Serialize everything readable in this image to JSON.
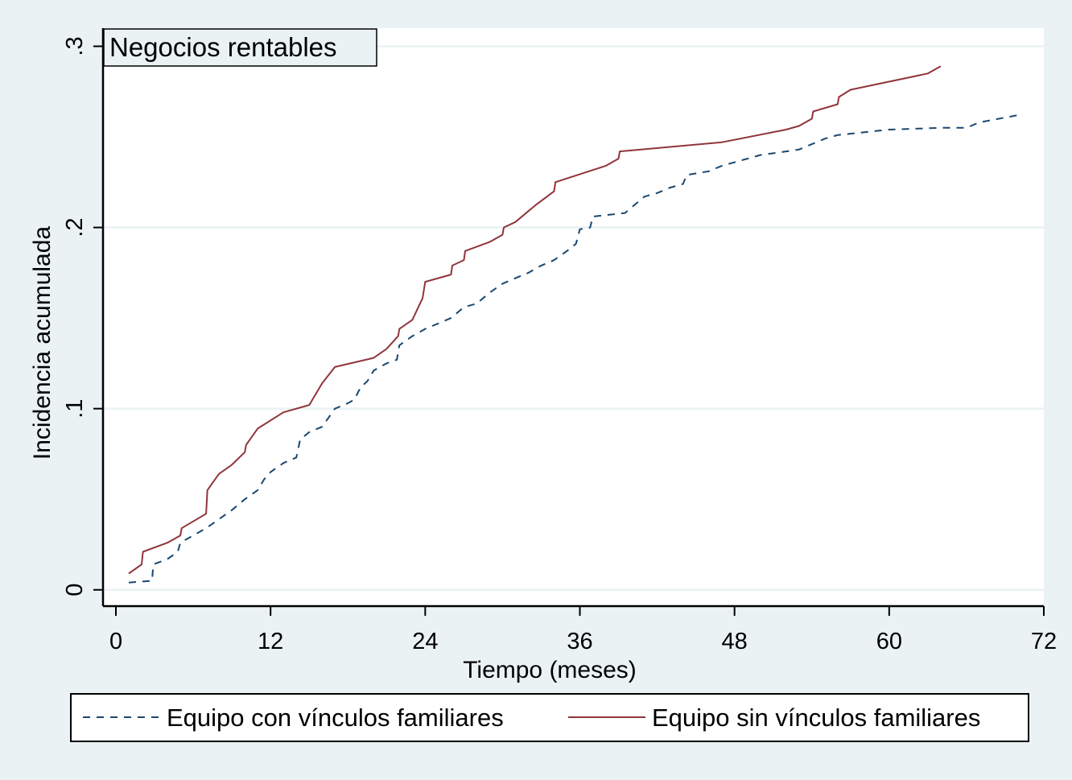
{
  "chart_data": {
    "type": "line",
    "title": "",
    "panel_label": "Negocios rentables",
    "xlabel": "Tiempo (meses)",
    "ylabel": "Incidencia acumulada",
    "xlim": [
      -1,
      72
    ],
    "ylim": [
      -0.009,
      0.31
    ],
    "x_ticks": [
      0,
      12,
      24,
      36,
      48,
      60,
      72
    ],
    "x_tick_labels": [
      "0",
      "12",
      "24",
      "36",
      "48",
      "60",
      "72"
    ],
    "y_ticks": [
      0,
      0.1,
      0.2,
      0.3
    ],
    "y_tick_labels": [
      "0",
      ".1",
      ".2",
      ".3"
    ],
    "grid": true,
    "legend_position": "bottom",
    "series": [
      {
        "name": "Equipo con vínculos familiares",
        "style": "dashed",
        "color": "#1a476f",
        "points": [
          [
            1.0,
            0.004
          ],
          [
            2.8,
            0.005
          ],
          [
            2.9,
            0.014
          ],
          [
            4.0,
            0.017
          ],
          [
            4.8,
            0.021
          ],
          [
            5.0,
            0.026
          ],
          [
            7.0,
            0.034
          ],
          [
            9.0,
            0.044
          ],
          [
            10.0,
            0.05
          ],
          [
            11.0,
            0.055
          ],
          [
            11.5,
            0.061
          ],
          [
            12.0,
            0.065
          ],
          [
            13.0,
            0.07
          ],
          [
            14.0,
            0.073
          ],
          [
            14.3,
            0.083
          ],
          [
            15.0,
            0.087
          ],
          [
            16.0,
            0.09
          ],
          [
            17.0,
            0.1
          ],
          [
            18.0,
            0.103
          ],
          [
            18.5,
            0.105
          ],
          [
            19.0,
            0.112
          ],
          [
            19.5,
            0.115
          ],
          [
            20.0,
            0.121
          ],
          [
            21.0,
            0.125
          ],
          [
            21.8,
            0.127
          ],
          [
            22.0,
            0.135
          ],
          [
            23.0,
            0.14
          ],
          [
            24.0,
            0.144
          ],
          [
            25.0,
            0.147
          ],
          [
            26.0,
            0.15
          ],
          [
            27.0,
            0.156
          ],
          [
            28.0,
            0.158
          ],
          [
            29.0,
            0.164
          ],
          [
            30.0,
            0.169
          ],
          [
            31.0,
            0.172
          ],
          [
            32.0,
            0.175
          ],
          [
            33.0,
            0.179
          ],
          [
            34.0,
            0.182
          ],
          [
            35.0,
            0.187
          ],
          [
            35.7,
            0.191
          ],
          [
            36.0,
            0.199
          ],
          [
            36.8,
            0.2
          ],
          [
            37.0,
            0.206
          ],
          [
            39.5,
            0.208
          ],
          [
            40.0,
            0.211
          ],
          [
            41.0,
            0.217
          ],
          [
            42.0,
            0.219
          ],
          [
            43.0,
            0.222
          ],
          [
            44.0,
            0.224
          ],
          [
            44.3,
            0.229
          ],
          [
            46.0,
            0.231
          ],
          [
            47.0,
            0.234
          ],
          [
            49.0,
            0.238
          ],
          [
            50.0,
            0.24
          ],
          [
            52.0,
            0.242
          ],
          [
            53.0,
            0.243
          ],
          [
            54.0,
            0.246
          ],
          [
            55.0,
            0.249
          ],
          [
            56.0,
            0.251
          ],
          [
            60.0,
            0.254
          ],
          [
            64.0,
            0.255
          ],
          [
            66.0,
            0.255
          ],
          [
            67.0,
            0.258
          ],
          [
            70.0,
            0.262
          ]
        ]
      },
      {
        "name": "Equipo sin vínculos familiares",
        "style": "solid",
        "color": "#90353b",
        "points": [
          [
            1.0,
            0.009
          ],
          [
            2.0,
            0.014
          ],
          [
            2.1,
            0.021
          ],
          [
            4.0,
            0.026
          ],
          [
            5.0,
            0.03
          ],
          [
            5.1,
            0.034
          ],
          [
            7.0,
            0.042
          ],
          [
            7.1,
            0.055
          ],
          [
            8.0,
            0.064
          ],
          [
            9.0,
            0.069
          ],
          [
            10.0,
            0.076
          ],
          [
            10.1,
            0.08
          ],
          [
            11.0,
            0.089
          ],
          [
            13.0,
            0.098
          ],
          [
            15.0,
            0.102
          ],
          [
            16.0,
            0.114
          ],
          [
            17.0,
            0.123
          ],
          [
            20.0,
            0.128
          ],
          [
            21.0,
            0.133
          ],
          [
            21.9,
            0.14
          ],
          [
            22.0,
            0.144
          ],
          [
            23.0,
            0.149
          ],
          [
            23.8,
            0.161
          ],
          [
            24.0,
            0.17
          ],
          [
            26.0,
            0.174
          ],
          [
            26.1,
            0.179
          ],
          [
            27.0,
            0.182
          ],
          [
            27.1,
            0.187
          ],
          [
            29.0,
            0.192
          ],
          [
            30.0,
            0.196
          ],
          [
            30.1,
            0.2
          ],
          [
            31.0,
            0.203
          ],
          [
            32.0,
            0.209
          ],
          [
            32.5,
            0.212
          ],
          [
            34.0,
            0.22
          ],
          [
            34.1,
            0.225
          ],
          [
            38.0,
            0.234
          ],
          [
            39.0,
            0.238
          ],
          [
            39.1,
            0.242
          ],
          [
            47.0,
            0.247
          ],
          [
            52.0,
            0.254
          ],
          [
            53.0,
            0.256
          ],
          [
            54.0,
            0.26
          ],
          [
            54.1,
            0.264
          ],
          [
            56.0,
            0.268
          ],
          [
            56.1,
            0.272
          ],
          [
            57.0,
            0.276
          ],
          [
            63.0,
            0.285
          ],
          [
            64.0,
            0.289
          ]
        ]
      }
    ]
  }
}
